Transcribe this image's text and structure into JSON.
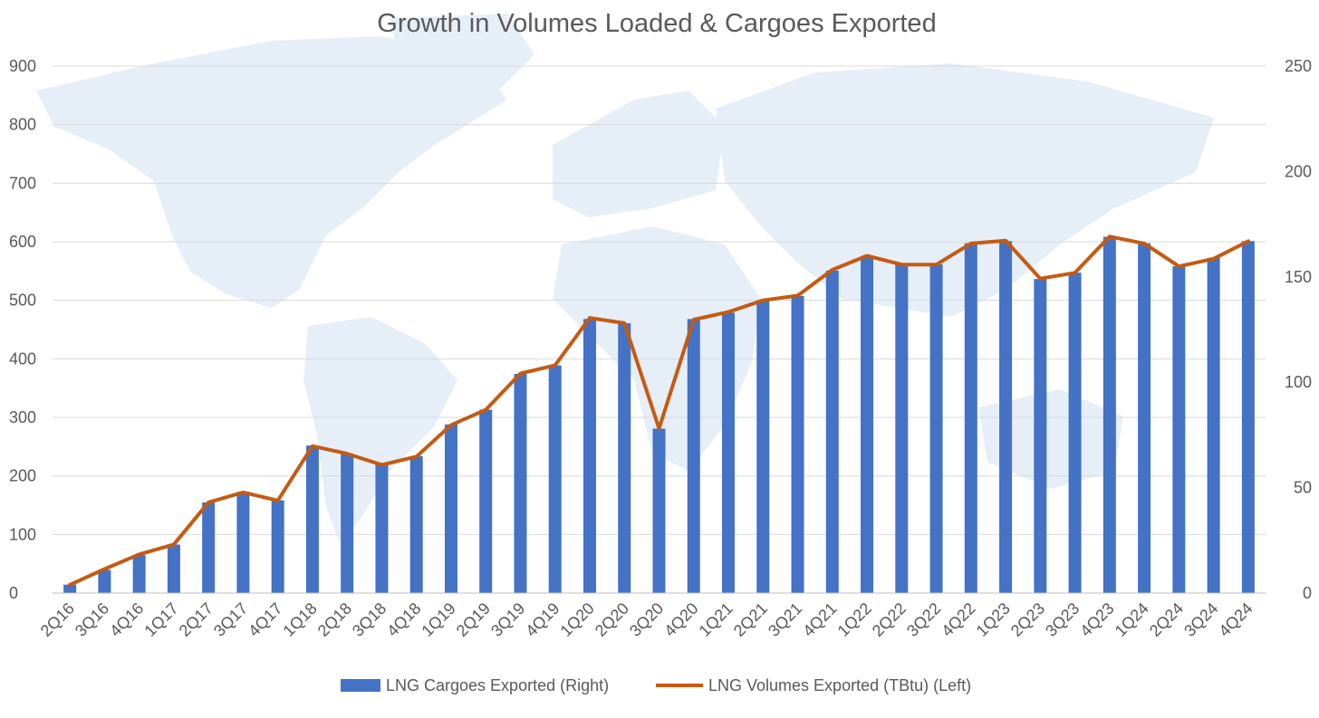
{
  "chart_data": {
    "type": "bar",
    "title": "Growth in Volumes Loaded & Cargoes Exported",
    "categories": [
      "2Q16",
      "3Q16",
      "4Q16",
      "1Q17",
      "2Q17",
      "3Q17",
      "4Q17",
      "1Q18",
      "2Q18",
      "3Q18",
      "4Q18",
      "1Q19",
      "2Q19",
      "3Q19",
      "4Q19",
      "1Q20",
      "2Q20",
      "3Q20",
      "4Q20",
      "1Q21",
      "2Q21",
      "3Q21",
      "4Q21",
      "1Q22",
      "2Q22",
      "3Q22",
      "4Q22",
      "1Q23",
      "2Q23",
      "3Q23",
      "4Q23",
      "1Q24",
      "2Q24",
      "3Q24",
      "4Q24"
    ],
    "y_left": {
      "ylim": [
        0,
        900
      ],
      "ticks": [
        0,
        100,
        200,
        300,
        400,
        500,
        600,
        700,
        800,
        900
      ]
    },
    "y_right": {
      "ylim": [
        0,
        250
      ],
      "ticks": [
        0,
        50,
        100,
        150,
        200,
        250
      ]
    },
    "grid": true,
    "legend_position": "bottom",
    "series": [
      {
        "name": "LNG Cargoes Exported (Right)",
        "type": "bar",
        "axis": "right",
        "color": "#4472C4",
        "values": [
          4,
          11,
          18,
          23,
          43,
          48,
          44,
          70,
          66,
          61,
          65,
          80,
          87,
          104,
          108,
          130,
          128,
          78,
          130,
          133,
          139,
          141,
          153,
          160,
          156,
          156,
          166,
          167,
          149,
          152,
          169,
          166,
          155,
          159,
          167
        ]
      },
      {
        "name": "LNG Volumes Exported (TBtu) (Left)",
        "type": "line",
        "axis": "left",
        "color": "#C55A11",
        "values": [
          14,
          41,
          66,
          83,
          155,
          172,
          158,
          251,
          238,
          219,
          233,
          287,
          313,
          375,
          389,
          470,
          461,
          281,
          467,
          480,
          500,
          508,
          552,
          576,
          561,
          561,
          597,
          602,
          537,
          547,
          609,
          597,
          558,
          571,
          601
        ]
      }
    ]
  }
}
